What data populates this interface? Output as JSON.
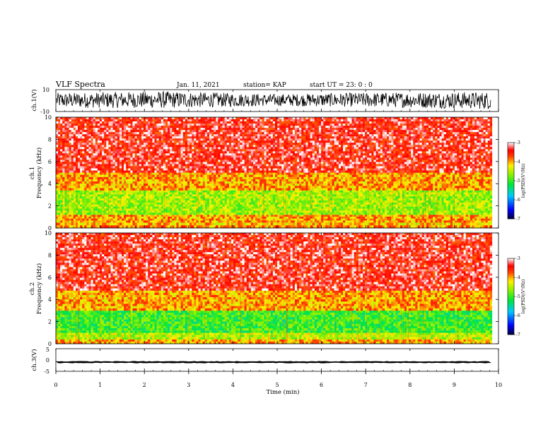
{
  "header": {
    "title": "VLF Spectra",
    "date": "Jan. 11, 2021",
    "station": "station= KAP",
    "start_ut": "start  UT  =   23: 0  : 0"
  },
  "chart_data": [
    {
      "type": "line",
      "panel": "ch1-waveform",
      "ylabel": "ch.1(V)",
      "ylim": [
        -10,
        10
      ],
      "yticks": [
        "10",
        "-10"
      ],
      "xlim": [
        0,
        10
      ],
      "data_extent_min": 9.83,
      "envelope_min": [
        -6.5,
        -7,
        -5,
        -6,
        -8
      ],
      "envelope_max": [
        7,
        8.5,
        6,
        7.5,
        8
      ],
      "color": "#000000"
    },
    {
      "type": "heatmap",
      "panel": "ch1-spectrogram",
      "ylabel": "ch.1",
      "ylabel2": "Frequency  (kHz)",
      "ylim": [
        0,
        10
      ],
      "yticks": [
        "0",
        "2",
        "4",
        "6",
        "8",
        "10"
      ],
      "xlim": [
        0,
        10
      ],
      "colorbar": {
        "label": "log(PSD)(V²/Hz)",
        "range": [
          -7,
          -3
        ],
        "ticks": [
          "-3",
          "-4",
          "-5",
          "-6",
          "-7"
        ]
      },
      "bands_khz": [
        {
          "from": 0,
          "to": 0.25,
          "level": -3.9
        },
        {
          "from": 0.25,
          "to": 0.5,
          "level": -4.1
        },
        {
          "from": 0.5,
          "to": 1.2,
          "level": -4.0
        },
        {
          "from": 1.2,
          "to": 3.4,
          "level": -4.6
        },
        {
          "from": 3.4,
          "to": 5.0,
          "level": -4.0
        },
        {
          "from": 5.0,
          "to": 10.0,
          "level": -3.4
        }
      ]
    },
    {
      "type": "heatmap",
      "panel": "ch2-spectrogram",
      "ylabel": "ch.2",
      "ylabel2": "Frequency  (kHz)",
      "ylim": [
        0,
        10
      ],
      "yticks": [
        "0",
        "2",
        "4",
        "6",
        "8",
        "10"
      ],
      "xlim": [
        0,
        10
      ],
      "colorbar": {
        "label": "log(PSD)(V²/Hz)",
        "range": [
          -7,
          -3
        ],
        "ticks": [
          "-3",
          "-4",
          "-5",
          "-6",
          "-7"
        ]
      },
      "bands_khz": [
        {
          "from": 0,
          "to": 0.4,
          "level": -4.0
        },
        {
          "from": 0.4,
          "to": 1.0,
          "level": -4.5
        },
        {
          "from": 1.0,
          "to": 3.0,
          "level": -5.0
        },
        {
          "from": 3.0,
          "to": 4.8,
          "level": -4.0
        },
        {
          "from": 4.8,
          "to": 10.0,
          "level": -3.4
        }
      ]
    },
    {
      "type": "line",
      "panel": "ch3-waveform",
      "ylabel": "ch.3(V)",
      "ylim": [
        -5,
        5
      ],
      "yticks": [
        "5",
        "0",
        "-5"
      ],
      "xlim": [
        0,
        10
      ],
      "xlabel": "Time  (min)",
      "xticks": [
        "0",
        "1",
        "2",
        "3",
        "4",
        "5",
        "6",
        "7",
        "8",
        "9",
        "10"
      ],
      "band_v": [
        -1.2,
        -0.7
      ],
      "color": "#000000"
    }
  ]
}
